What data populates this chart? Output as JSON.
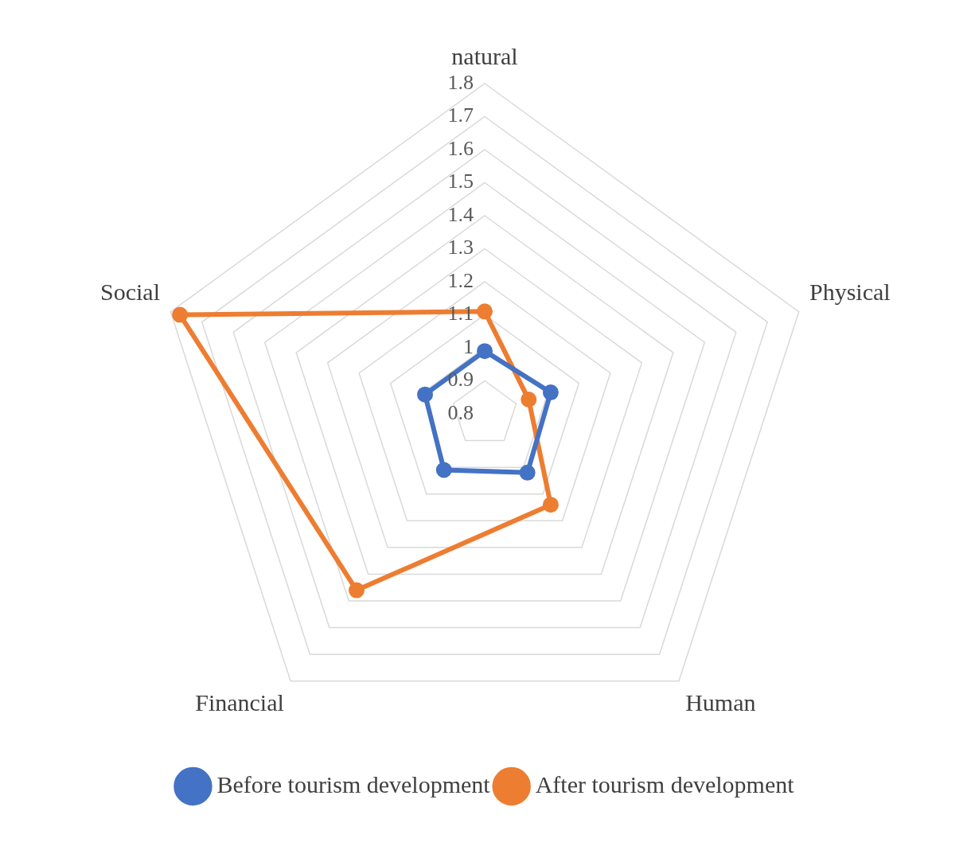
{
  "chart_data": {
    "type": "radar",
    "categories": [
      "natural",
      "Physical",
      "Human",
      "Financial",
      "Social"
    ],
    "series": [
      {
        "name": "Before tourism development",
        "color": "#4472c4",
        "values": [
          0.99,
          1.01,
          1.02,
          1.01,
          0.99
        ]
      },
      {
        "name": "After tourism development",
        "color": "#ed7d31",
        "values": [
          1.11,
          0.94,
          1.14,
          1.46,
          1.77
        ]
      }
    ],
    "ylim": [
      0.8,
      1.8
    ],
    "yticks": [
      0.8,
      0.9,
      1,
      1.1,
      1.2,
      1.3,
      1.4,
      1.5,
      1.6,
      1.7,
      1.8
    ],
    "grid": true,
    "legend": "bottom",
    "marker": "circle",
    "line_style": "solid"
  }
}
